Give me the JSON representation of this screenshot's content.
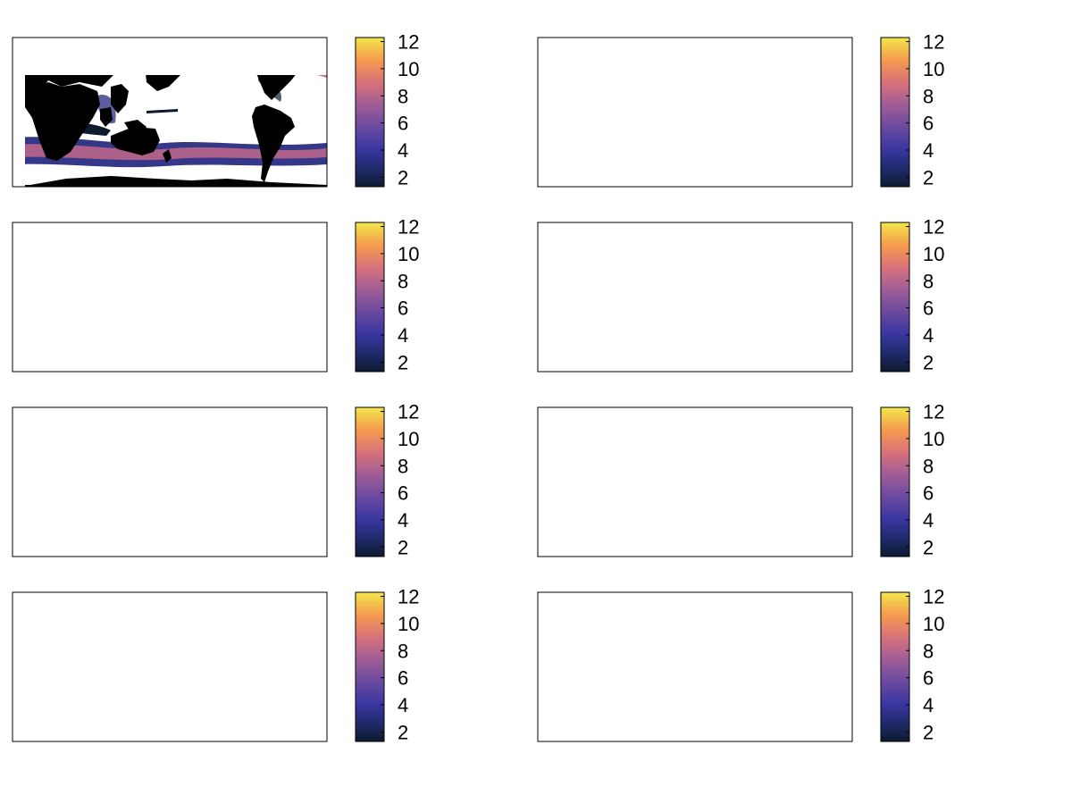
{
  "figure": {
    "rows": 4,
    "cols": 2
  },
  "colormap": {
    "name": "thermal-like",
    "stops": [
      "#0d1a2e",
      "#2a2c82",
      "#5d3f9b",
      "#8b5a9b",
      "#c2688a",
      "#ef8a5b",
      "#f7b345",
      "#f2e64b"
    ]
  },
  "colors": {
    "land": "#000000",
    "no_data": "#ffffff",
    "frame": "#000000"
  },
  "chart_data": [
    {
      "type": "heatmap",
      "panel": "row1-left",
      "colorbar": {
        "ticks": [
          "2",
          "4",
          "6",
          "8",
          "10",
          "12"
        ],
        "range": [
          1.3,
          12.3
        ]
      },
      "intensity": 1.0
    },
    {
      "type": "heatmap",
      "panel": "row1-right",
      "colorbar": {
        "ticks": [
          "2",
          "4",
          "6",
          "8",
          "10",
          "12"
        ],
        "range": [
          1.3,
          12.3
        ]
      },
      "intensity": 0.75
    },
    {
      "type": "heatmap",
      "panel": "row2-left",
      "colorbar": {
        "ticks": [
          "2",
          "4",
          "6",
          "8",
          "10",
          "12"
        ],
        "range": [
          1.3,
          12.3
        ]
      },
      "intensity": 0.7
    },
    {
      "type": "heatmap",
      "panel": "row2-right",
      "colorbar": {
        "ticks": [
          "2",
          "4",
          "6",
          "8",
          "10",
          "12"
        ],
        "range": [
          1.3,
          12.3
        ]
      },
      "intensity": 0.35
    },
    {
      "type": "heatmap",
      "panel": "row3-left",
      "colorbar": {
        "ticks": [
          "2",
          "4",
          "6",
          "8",
          "10",
          "12"
        ],
        "range": [
          1.3,
          12.3
        ]
      },
      "intensity": 0.15
    },
    {
      "type": "heatmap",
      "panel": "row3-right",
      "colorbar": {
        "ticks": [
          "2",
          "4",
          "6",
          "8",
          "10",
          "12"
        ],
        "range": [
          1.3,
          12.3
        ]
      },
      "intensity": 0.25
    },
    {
      "type": "heatmap",
      "panel": "row4-left",
      "colorbar": {
        "ticks": [
          "2",
          "4",
          "6",
          "8",
          "10",
          "12"
        ],
        "range": [
          1.3,
          12.3
        ]
      },
      "intensity": 0.8
    },
    {
      "type": "heatmap",
      "panel": "row4-right",
      "colorbar": {
        "ticks": [
          "2",
          "4",
          "6",
          "8",
          "10",
          "12"
        ],
        "range": [
          1.3,
          12.3
        ]
      },
      "intensity": 0.65
    }
  ]
}
